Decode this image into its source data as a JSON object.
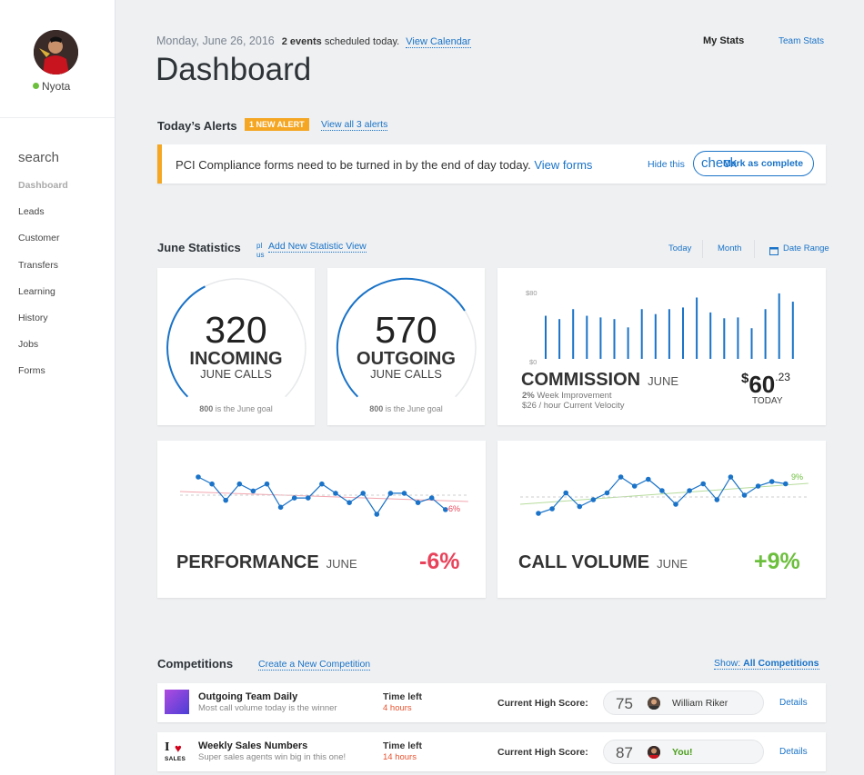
{
  "user": {
    "name": "Nyota"
  },
  "sidebar": {
    "search_label": "search",
    "items": [
      "Dashboard",
      "Leads",
      "Customer",
      "Transfers",
      "Learning",
      "History",
      "Jobs",
      "Forms"
    ]
  },
  "header": {
    "date": "Monday, June 26, 2016",
    "events_count": "2 events",
    "events_text": "scheduled today.",
    "view_calendar": "View Calendar",
    "title": "Dashboard",
    "my_stats": "My Stats",
    "team_stats": "Team Stats"
  },
  "alerts": {
    "title": "Today’s Alerts",
    "badge": "1 NEW ALERT",
    "view_all": "View all 3 alerts",
    "message": "PCI Compliance forms need to be turned in by the end of day today.",
    "view_forms": "View forms",
    "hide": "Hide this",
    "check_text": "check",
    "mark_complete": "Mark as complete"
  },
  "stats": {
    "title": "June Statistics",
    "plus_text": "plus",
    "add_view": "Add New Statistic View",
    "today": "Today",
    "month": "Month",
    "date_range": "Date Range",
    "incoming": {
      "value": "320",
      "label": "INCOMING",
      "sub": "JUNE CALLS",
      "goal_num": "800",
      "goal_text": "is the June goal",
      "progress": 0.4
    },
    "outgoing": {
      "value": "570",
      "label": "OUTGOING",
      "sub": "JUNE CALLS",
      "goal_num": "800",
      "goal_text": "is the June goal",
      "progress": 0.7125
    },
    "commission": {
      "label": "COMMISSION",
      "month": "JUNE",
      "improvement_pct": "2%",
      "improvement_text": "Week Improvement",
      "velocity": "$26 / hour Current Velocity",
      "currency": "$",
      "amount": "60",
      "cents": ".23",
      "today": "TODAY",
      "y_top": "$80",
      "y_bottom": "$0"
    },
    "performance": {
      "label": "PERFORMANCE",
      "month": "JUNE",
      "value": "-6%",
      "point_label": "-6%"
    },
    "call_volume": {
      "label": "CALL VOLUME",
      "month": "JUNE",
      "value": "+9%",
      "point_label": "9%"
    }
  },
  "colors": {
    "accent": "#1a73c8",
    "alert": "#f5a623",
    "negative": "#e8435a",
    "positive": "#6cbf3c"
  },
  "chart_data": [
    {
      "type": "bar",
      "title": "COMMISSION",
      "ylim": [
        0,
        80
      ],
      "values": [
        52,
        48,
        60,
        52,
        50,
        48,
        38,
        60,
        54,
        60,
        62,
        74,
        56,
        49,
        50,
        37,
        60,
        79,
        69
      ]
    },
    {
      "type": "line",
      "title": "PERFORMANCE",
      "values": [
        18,
        15,
        8,
        15,
        12,
        15,
        5,
        9,
        9,
        15,
        11,
        7,
        11,
        2,
        11,
        11,
        7,
        9,
        4
      ]
    },
    {
      "type": "line",
      "title": "CALL VOLUME",
      "values": [
        2,
        4,
        11,
        5,
        8,
        11,
        18,
        14,
        17,
        12,
        6,
        12,
        15,
        8,
        18,
        10,
        14,
        16,
        15
      ]
    }
  ],
  "competitions": {
    "title": "Competitions",
    "create": "Create a New Competition",
    "show_label": "Show:",
    "show_value": "All Competitions",
    "rows": [
      {
        "title": "Outgoing Team Daily",
        "desc": "Most call volume today is the winner",
        "time_label": "Time left",
        "time_value": "4 hours",
        "hs_label": "Current High Score:",
        "score": "75",
        "leader": "William Riker",
        "details": "Details"
      },
      {
        "title": "Weekly Sales Numbers",
        "desc": "Super sales agents win big in this one!",
        "time_label": "Time left",
        "time_value": "14 hours",
        "hs_label": "Current High Score:",
        "score": "87",
        "leader": "You!",
        "details": "Details",
        "logo_i": "I",
        "logo_sales": "SALES"
      }
    ]
  }
}
